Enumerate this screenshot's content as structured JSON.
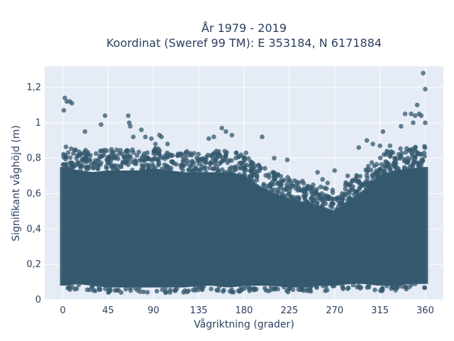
{
  "chart_data": {
    "type": "scatter",
    "title": "År 1979 - 2019",
    "subtitle": "Koordinat (Sweref 99 TM): E 353184, N 6171884",
    "xlabel": "Vågriktning (grader)",
    "ylabel": "Signifikant våghöjd (m)",
    "xlim": [
      -18,
      378
    ],
    "ylim": [
      0,
      1.32
    ],
    "x_ticks": [
      0,
      45,
      90,
      135,
      180,
      225,
      270,
      315,
      360
    ],
    "x_tick_labels": [
      "0",
      "45",
      "90",
      "135",
      "180",
      "225",
      "270",
      "315",
      "360"
    ],
    "y_ticks": [
      0,
      0.2,
      0.4,
      0.6,
      0.8,
      1.0,
      1.2
    ],
    "y_tick_labels": [
      "0",
      "0,2",
      "0,4",
      "0,6",
      "0,8",
      "1",
      "1,2"
    ],
    "grid": true,
    "legend": "none",
    "marker_color": "#34586e",
    "plot_background": "#e5ecf6",
    "series": [
      {
        "x": [
          0,
          15,
          30,
          45,
          60,
          75,
          90,
          105,
          120,
          135,
          150,
          165,
          180,
          195,
          210,
          225,
          240,
          255,
          270,
          285,
          300,
          315,
          330,
          345,
          360
        ],
        "y_min": [
          0.08,
          0.09,
          0.08,
          0.07,
          0.07,
          0.07,
          0.07,
          0.07,
          0.07,
          0.08,
          0.08,
          0.07,
          0.08,
          0.08,
          0.08,
          0.07,
          0.07,
          0.08,
          0.08,
          0.09,
          0.09,
          0.08,
          0.08,
          0.09,
          0.09
        ],
        "y_dense_max": [
          0.75,
          0.73,
          0.72,
          0.73,
          0.73,
          0.73,
          0.74,
          0.73,
          0.72,
          0.72,
          0.72,
          0.72,
          0.7,
          0.64,
          0.6,
          0.57,
          0.55,
          0.53,
          0.5,
          0.56,
          0.62,
          0.7,
          0.73,
          0.74,
          0.75
        ]
      },
      {
        "x": [
          1,
          2,
          4,
          7,
          9,
          22,
          38,
          42,
          65,
          66,
          67,
          70,
          78,
          82,
          88,
          92,
          96,
          98,
          104,
          145,
          150,
          158,
          162,
          168,
          182,
          198,
          210,
          223,
          253,
          258,
          263,
          268,
          270,
          283,
          294,
          302,
          308,
          315,
          318,
          322,
          325,
          336,
          340,
          346,
          348,
          350,
          352,
          354,
          356,
          358,
          360,
          360
        ],
        "y": [
          1.07,
          1.14,
          1.12,
          1.12,
          1.11,
          0.95,
          0.99,
          1.04,
          1.04,
          1.0,
          0.98,
          0.92,
          0.96,
          0.92,
          0.91,
          0.88,
          0.93,
          0.92,
          0.88,
          0.91,
          0.92,
          0.97,
          0.95,
          0.93,
          0.83,
          0.92,
          0.8,
          0.79,
          0.72,
          0.68,
          0.66,
          0.62,
          0.73,
          0.7,
          0.86,
          0.9,
          0.88,
          0.87,
          0.95,
          0.84,
          0.87,
          0.98,
          1.05,
          1.05,
          1.0,
          1.04,
          1.1,
          1.05,
          1.04,
          1.28,
          1.19,
          1.0
        ]
      }
    ]
  }
}
